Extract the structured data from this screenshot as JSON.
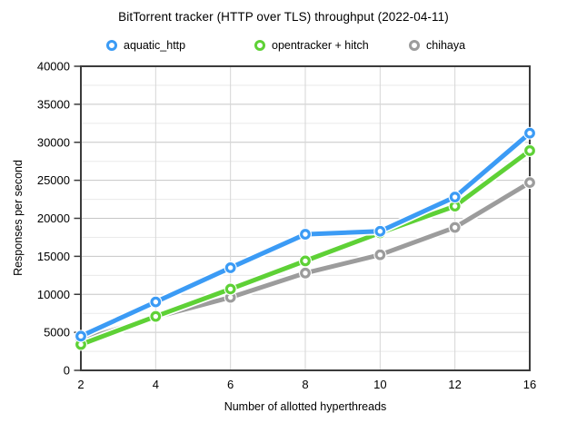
{
  "chart_data": {
    "type": "line",
    "title": "BitTorrent tracker (HTTP over TLS) throughput (2022-04-11)",
    "xlabel": "Number of allotted hyperthreads",
    "ylabel": "Responses per second",
    "x_categories": [
      "2",
      "4",
      "6",
      "8",
      "10",
      "12",
      "16"
    ],
    "series": [
      {
        "name": "aquatic_http",
        "color": "#3b9bf5",
        "values": [
          4500,
          9000,
          13500,
          17900,
          18300,
          22800,
          31200
        ]
      },
      {
        "name": "opentracker + hitch",
        "color": "#5ed136",
        "values": [
          3400,
          7100,
          10700,
          14400,
          18100,
          21600,
          28900
        ]
      },
      {
        "name": "chihaya",
        "color": "#9c9c9c",
        "values": [
          4000,
          7000,
          9600,
          12800,
          15200,
          18800,
          24700
        ]
      }
    ],
    "ylim": [
      0,
      40000
    ],
    "y_major_step": 5000,
    "y_minor_step": 2500,
    "grid": true,
    "legend_position": "top",
    "marker": "open-circle"
  },
  "colors": {
    "spine": "#3b3b3b",
    "grid_major": "#c6c6c6",
    "grid_minor": "#eaeaea",
    "grid_vertical": "#d6d6d6",
    "text": "#000000",
    "marker_fill": "#ffffff"
  }
}
